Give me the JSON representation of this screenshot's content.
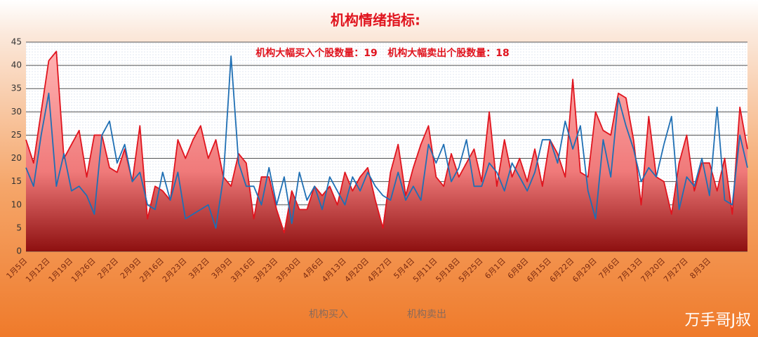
{
  "chart_data": {
    "type": "line",
    "title": "机构情绪指标:",
    "annotation": "机构大幅买入个股数量：19   机构大幅卖出个股数量：18",
    "watermark": "万手哥J叔",
    "categories": [
      "1月5日",
      null,
      null,
      "1月12日",
      null,
      null,
      "1月19日",
      null,
      null,
      "1月26日",
      null,
      null,
      "2月2日",
      null,
      null,
      "2月9日",
      null,
      null,
      "2月16日",
      null,
      null,
      "2月23日",
      null,
      null,
      "3月2日",
      null,
      null,
      "3月9日",
      null,
      null,
      "3月16日",
      null,
      null,
      "3月23日",
      null,
      null,
      "3月30日",
      null,
      null,
      "4月6日",
      null,
      null,
      "4月13日",
      null,
      null,
      "4月20日",
      null,
      null,
      "4月27日",
      null,
      null,
      "5月4日",
      null,
      null,
      "5月11日",
      null,
      null,
      "5月18日",
      null,
      null,
      "5月25日",
      null,
      null,
      "6月1日",
      null,
      null,
      "6月8日",
      null,
      null,
      "6月15日",
      null,
      null,
      "6月22日",
      null,
      null,
      "6月29日",
      null,
      null,
      "7月6日",
      null,
      null,
      "7月13日",
      null,
      null,
      "7月20日",
      null,
      null,
      "7月27日",
      null,
      null,
      "8月3日",
      null,
      null,
      null,
      null,
      null
    ],
    "series": [
      {
        "name": "机构买入",
        "color": "#1f6fb4",
        "values": [
          18,
          14,
          25,
          34,
          14,
          21,
          13,
          14,
          12,
          8,
          25,
          28,
          19,
          23,
          15,
          17,
          10,
          9,
          17,
          11,
          17,
          7,
          8,
          9,
          10,
          5,
          16,
          42,
          19,
          14,
          14,
          10,
          18,
          10,
          16,
          6,
          17,
          11,
          14,
          9,
          16,
          13,
          10,
          16,
          13,
          17,
          14,
          12,
          11,
          17,
          11,
          14,
          11,
          23,
          19,
          23,
          15,
          18,
          24,
          14,
          14,
          19,
          17,
          13,
          19,
          16,
          13,
          17,
          24,
          24,
          19,
          28,
          22,
          27,
          13,
          7,
          24,
          16,
          33,
          27,
          22,
          15,
          18,
          16,
          23,
          29,
          9,
          16,
          14,
          20,
          12,
          31,
          11,
          10,
          25,
          18
        ]
      },
      {
        "name": "机构卖出",
        "color": "#e0141e",
        "area": true,
        "values": [
          24,
          19,
          30,
          41,
          43,
          20,
          23,
          26,
          16,
          25,
          25,
          18,
          17,
          22,
          15,
          27,
          7,
          14,
          13,
          11,
          24,
          20,
          24,
          27,
          20,
          24,
          16,
          14,
          21,
          19,
          7,
          16,
          16,
          9,
          4,
          13,
          9,
          9,
          14,
          12,
          14,
          10,
          17,
          13,
          16,
          18,
          11,
          5,
          17,
          23,
          12,
          18,
          23,
          27,
          16,
          14,
          21,
          16,
          19,
          22,
          15,
          30,
          14,
          24,
          16,
          20,
          15,
          22,
          14,
          24,
          21,
          16,
          37,
          17,
          16,
          30,
          26,
          25,
          34,
          33,
          24,
          10,
          29,
          16,
          15,
          8,
          19,
          25,
          13,
          19,
          19,
          13,
          20,
          8,
          31,
          22
        ]
      }
    ],
    "ylim": [
      0,
      45
    ],
    "yticks": [
      0,
      5,
      10,
      15,
      20,
      25,
      30,
      35,
      40,
      45
    ],
    "grid": true
  }
}
